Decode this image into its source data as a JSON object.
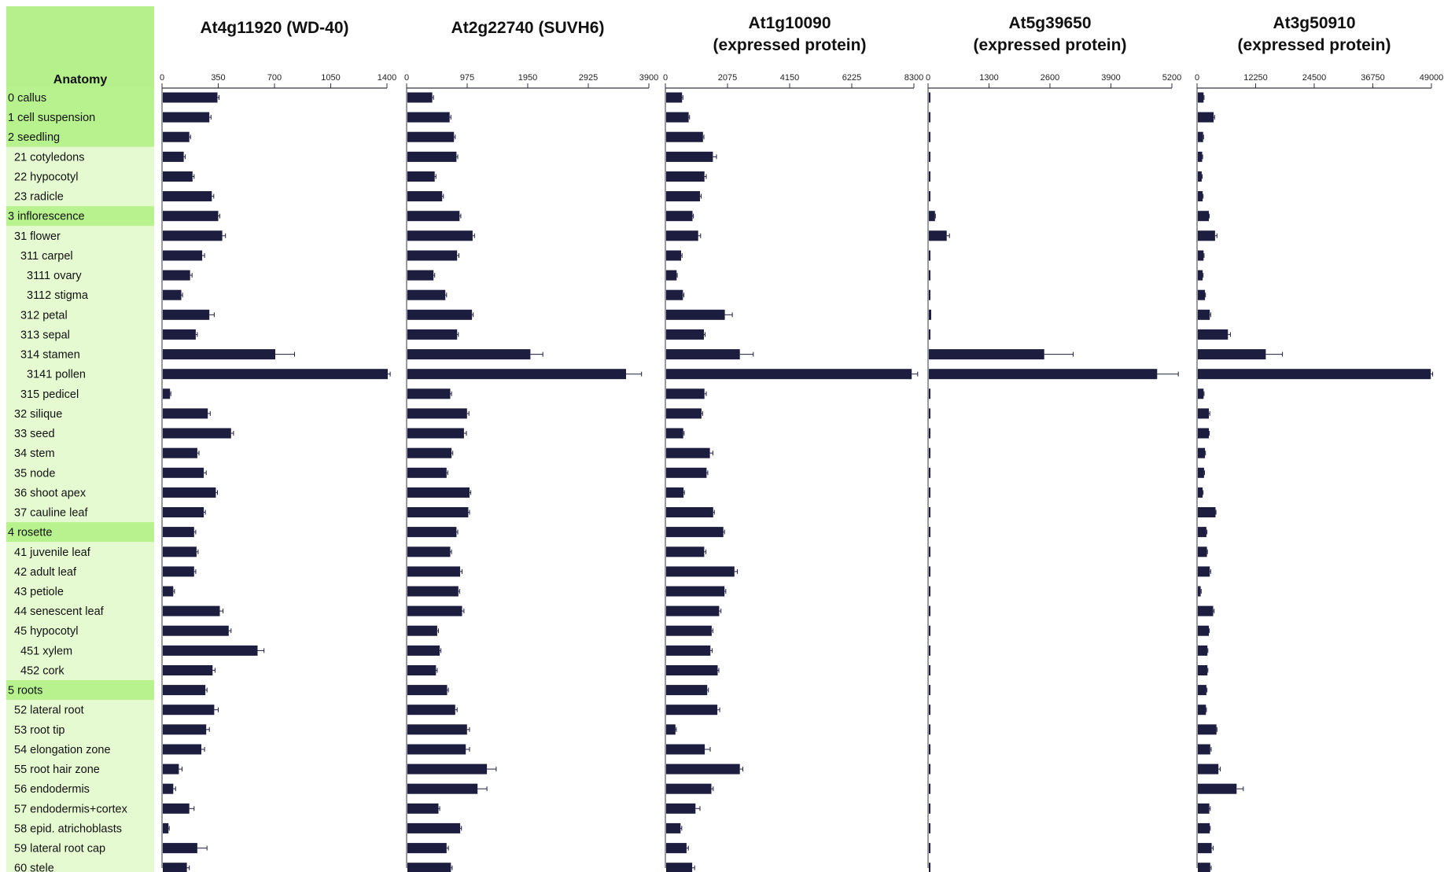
{
  "colors": {
    "bar": "#1c1d3f",
    "anatomy_header": "#b5f08c",
    "anatomy_group": "#b8f28e",
    "anatomy_sub": "#e6fad2",
    "axis": "#333344"
  },
  "anatomy_header": "Anatomy",
  "anatomy": [
    {
      "label": "0 callus",
      "level": 0
    },
    {
      "label": "1 cell suspension",
      "level": 0
    },
    {
      "label": "2 seedling",
      "level": 0
    },
    {
      "label": "21 cotyledons",
      "level": 1
    },
    {
      "label": "22 hypocotyl",
      "level": 1
    },
    {
      "label": "23 radicle",
      "level": 1
    },
    {
      "label": "3 inflorescence",
      "level": 0
    },
    {
      "label": "31 flower",
      "level": 1
    },
    {
      "label": "311 carpel",
      "level": 2
    },
    {
      "label": "3111 ovary",
      "level": 3
    },
    {
      "label": "3112 stigma",
      "level": 3
    },
    {
      "label": "312 petal",
      "level": 2
    },
    {
      "label": "313 sepal",
      "level": 2
    },
    {
      "label": "314 stamen",
      "level": 2
    },
    {
      "label": "3141 pollen",
      "level": 3
    },
    {
      "label": "315 pedicel",
      "level": 2
    },
    {
      "label": "32 silique",
      "level": 1
    },
    {
      "label": "33 seed",
      "level": 1
    },
    {
      "label": "34 stem",
      "level": 1
    },
    {
      "label": "35 node",
      "level": 1
    },
    {
      "label": "36 shoot apex",
      "level": 1
    },
    {
      "label": "37 cauline leaf",
      "level": 1
    },
    {
      "label": "4 rosette",
      "level": 0
    },
    {
      "label": "41 juvenile leaf",
      "level": 1
    },
    {
      "label": "42 adult leaf",
      "level": 1
    },
    {
      "label": "43 petiole",
      "level": 1
    },
    {
      "label": "44 senescent leaf",
      "level": 1
    },
    {
      "label": "45 hypocotyl",
      "level": 1
    },
    {
      "label": "451 xylem",
      "level": 2
    },
    {
      "label": "452 cork",
      "level": 2
    },
    {
      "label": "5 roots",
      "level": 0
    },
    {
      "label": "52 lateral root",
      "level": 1
    },
    {
      "label": "53 root tip",
      "level": 1
    },
    {
      "label": "54 elongation zone",
      "level": 1
    },
    {
      "label": "55 root hair zone",
      "level": 1
    },
    {
      "label": "56 endodermis",
      "level": 1
    },
    {
      "label": "57 endodermis+cortex",
      "level": 1
    },
    {
      "label": "58 epid. atrichoblasts",
      "level": 1
    },
    {
      "label": "59 lateral root cap",
      "level": 1
    },
    {
      "label": "60 stele",
      "level": 1
    }
  ],
  "chart_data": [
    {
      "type": "bar",
      "title": [
        "At4g11920  (WD-40)"
      ],
      "xlim": [
        0,
        1400
      ],
      "ticks": [
        "0",
        "350",
        "700",
        "1050",
        "1400"
      ],
      "values": [
        340,
        290,
        165,
        130,
        185,
        305,
        345,
        370,
        245,
        170,
        115,
        290,
        205,
        700,
        1400,
        45,
        280,
        425,
        215,
        255,
        330,
        255,
        195,
        210,
        195,
        65,
        355,
        410,
        590,
        310,
        265,
        320,
        270,
        240,
        100,
        65,
        165,
        35,
        215,
        150
      ],
      "errors": [
        10,
        10,
        8,
        10,
        10,
        12,
        10,
        20,
        15,
        12,
        8,
        30,
        10,
        120,
        15,
        5,
        15,
        15,
        10,
        15,
        10,
        10,
        10,
        10,
        10,
        8,
        20,
        15,
        40,
        15,
        10,
        25,
        20,
        20,
        20,
        15,
        30,
        5,
        60,
        15
      ]
    },
    {
      "type": "bar",
      "title": [
        "At2g22740 (SUVH6)"
      ],
      "xlim": [
        0,
        3900
      ],
      "ticks": [
        "0",
        "975",
        "1950",
        "2925",
        "3900"
      ],
      "values": [
        400,
        680,
        750,
        790,
        440,
        560,
        840,
        1050,
        800,
        420,
        610,
        1040,
        800,
        1980,
        3520,
        690,
        960,
        910,
        710,
        630,
        1000,
        980,
        790,
        690,
        850,
        820,
        880,
        480,
        520,
        460,
        640,
        770,
        960,
        940,
        1280,
        1130,
        500,
        850,
        630,
        700
      ],
      "errors": [
        20,
        20,
        20,
        20,
        20,
        20,
        20,
        30,
        30,
        20,
        20,
        20,
        20,
        200,
        250,
        20,
        30,
        40,
        20,
        20,
        20,
        20,
        20,
        20,
        30,
        20,
        30,
        20,
        20,
        20,
        20,
        30,
        40,
        60,
        150,
        150,
        20,
        20,
        30,
        20
      ]
    },
    {
      "type": "bar",
      "title": [
        "At1g10090",
        "(expressed protein)"
      ],
      "xlim": [
        0,
        8300
      ],
      "ticks": [
        "0",
        "2075",
        "4150",
        "6225",
        "8300"
      ],
      "values": [
        530,
        750,
        1230,
        1560,
        1280,
        1130,
        880,
        1070,
        500,
        350,
        560,
        1960,
        1260,
        2460,
        8200,
        1280,
        1180,
        570,
        1460,
        1350,
        580,
        1570,
        1910,
        1270,
        2280,
        1950,
        1770,
        1520,
        1480,
        1720,
        1370,
        1710,
        310,
        1290,
        2460,
        1510,
        980,
        480,
        680,
        870
      ],
      "errors": [
        30,
        30,
        30,
        120,
        60,
        40,
        30,
        80,
        30,
        20,
        30,
        250,
        40,
        450,
        200,
        60,
        40,
        30,
        100,
        40,
        30,
        40,
        40,
        60,
        100,
        40,
        60,
        40,
        60,
        40,
        40,
        80,
        30,
        180,
        100,
        60,
        150,
        40,
        60,
        80
      ]
    },
    {
      "type": "bar",
      "title": [
        "At5g39650",
        "(expressed protein)"
      ],
      "xlim": [
        0,
        5200
      ],
      "ticks": [
        "0",
        "1300",
        "2600",
        "3900",
        "5200"
      ],
      "values": [
        30,
        30,
        30,
        30,
        30,
        30,
        130,
        380,
        20,
        10,
        20,
        50,
        30,
        2460,
        4870,
        30,
        30,
        30,
        30,
        30,
        30,
        30,
        30,
        30,
        30,
        30,
        30,
        30,
        30,
        30,
        30,
        30,
        30,
        30,
        30,
        30,
        30,
        30,
        30,
        30
      ],
      "errors": [
        0,
        0,
        0,
        0,
        0,
        0,
        10,
        60,
        0,
        0,
        0,
        0,
        0,
        620,
        450,
        0,
        0,
        0,
        0,
        0,
        0,
        0,
        0,
        0,
        0,
        0,
        0,
        0,
        0,
        0,
        0,
        0,
        0,
        0,
        0,
        0,
        0,
        0,
        0,
        0
      ]
    },
    {
      "type": "bar",
      "title": [
        "At3g50910",
        "(expressed protein)"
      ],
      "xlim": [
        0,
        49000
      ],
      "ticks": [
        "0",
        "12250",
        "24500",
        "36750",
        "49000"
      ],
      "values": [
        1200,
        3300,
        1100,
        900,
        800,
        1000,
        2300,
        3600,
        1200,
        1000,
        1500,
        2500,
        6300,
        14200,
        48700,
        1200,
        2300,
        2300,
        1500,
        1300,
        1000,
        3700,
        1800,
        1900,
        2500,
        600,
        3200,
        2300,
        2000,
        2000,
        1800,
        1700,
        3900,
        2600,
        4300,
        8100,
        2400,
        2500,
        2900,
        2600
      ],
      "errors": [
        100,
        200,
        100,
        100,
        100,
        100,
        100,
        400,
        100,
        100,
        100,
        200,
        500,
        3500,
        400,
        100,
        200,
        100,
        100,
        100,
        100,
        100,
        100,
        100,
        200,
        100,
        200,
        100,
        100,
        100,
        100,
        100,
        100,
        200,
        400,
        1400,
        200,
        100,
        300,
        200
      ]
    }
  ]
}
